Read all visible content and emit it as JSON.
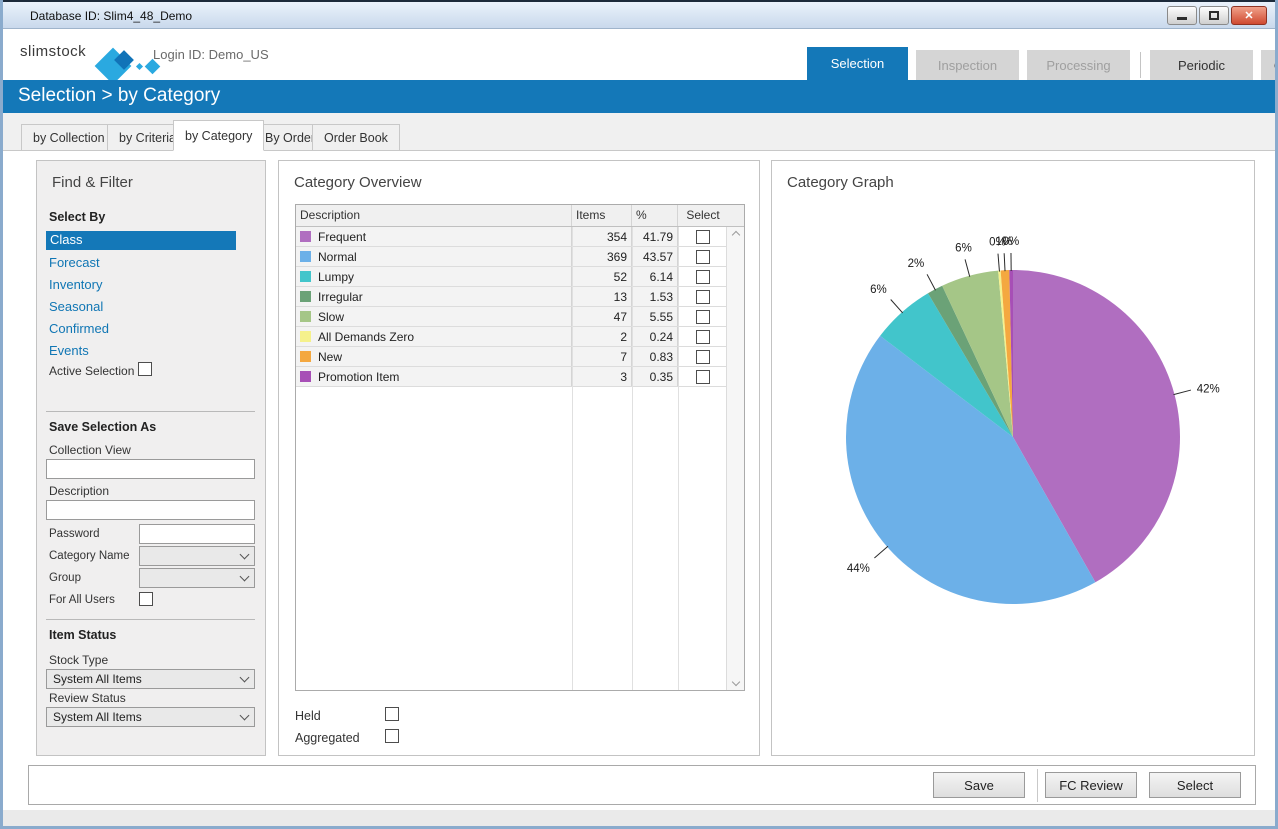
{
  "window": {
    "title": "Database ID: Slim4_48_Demo"
  },
  "header": {
    "logo_text": "slimstock",
    "login": "Login ID: Demo_US",
    "tabs": [
      {
        "label": "Selection",
        "state": "active"
      },
      {
        "label": "Inspection",
        "state": "disabled"
      },
      {
        "label": "Processing",
        "state": "disabled"
      },
      {
        "label": "Periodic",
        "state": "normal"
      },
      {
        "label": "Configuration",
        "state": "normal"
      }
    ]
  },
  "breadcrumb": {
    "text": "Selection > by Category"
  },
  "subtabs": [
    {
      "label": "by Collection"
    },
    {
      "label": "by Criteria"
    },
    {
      "label": "by Category",
      "state": "active"
    },
    {
      "label": "By Order"
    },
    {
      "label": "Order Book"
    }
  ],
  "find_filter": {
    "title": "Find & Filter",
    "select_by_label": "Select By",
    "select_by_items": [
      "Class",
      "Forecast",
      "Inventory",
      "Seasonal",
      "Confirmed",
      "Events"
    ],
    "active_selection_label": "Active Selection",
    "save_as_heading": "Save Selection As",
    "collection_view_label": "Collection View",
    "description_label": "Description",
    "password_label": "Password",
    "category_name_label": "Category Name",
    "group_label": "Group",
    "for_all_users_label": "For All Users",
    "item_status_heading": "Item Status",
    "stock_type_label": "Stock Type",
    "stock_type_value": "System All Items",
    "review_status_label": "Review Status",
    "review_status_value": "System All Items"
  },
  "category_overview": {
    "title": "Category Overview",
    "columns": [
      "Description",
      "Items",
      "%",
      "Select"
    ],
    "rows": [
      {
        "description": "Frequent",
        "items": "354",
        "pct": "41.79"
      },
      {
        "description": "Normal",
        "items": "369",
        "pct": "43.57"
      },
      {
        "description": "Lumpy",
        "items": "52",
        "pct": "6.14"
      },
      {
        "description": "Irregular",
        "items": "13",
        "pct": "1.53"
      },
      {
        "description": "Slow",
        "items": "47",
        "pct": "5.55"
      },
      {
        "description": "All Demands Zero",
        "items": "2",
        "pct": "0.24"
      },
      {
        "description": "New",
        "items": "7",
        "pct": "0.83"
      },
      {
        "description": "Promotion Item",
        "items": "3",
        "pct": "0.35"
      }
    ],
    "held_label": "Held",
    "aggregated_label": "Aggregated"
  },
  "category_graph": {
    "title": "Category Graph"
  },
  "chart_data": {
    "type": "pie",
    "title": "Category Graph",
    "legend_position": "none",
    "start_angle_deg": -90,
    "direction": "clockwise",
    "center": [
      241,
      276
    ],
    "radius": 167,
    "slices": [
      {
        "name": "Frequent",
        "value": 41.79,
        "items": 354,
        "label": "42%",
        "color": "#b06ec0"
      },
      {
        "name": "Normal",
        "value": 43.57,
        "items": 369,
        "label": "44%",
        "color": "#6cb0e8"
      },
      {
        "name": "Lumpy",
        "value": 6.14,
        "items": 52,
        "label": "6%",
        "color": "#42c5cb"
      },
      {
        "name": "Irregular",
        "value": 1.53,
        "items": 13,
        "label": "2%",
        "color": "#6ba277"
      },
      {
        "name": "Slow",
        "value": 5.55,
        "items": 47,
        "label": "6%",
        "color": "#a5c687"
      },
      {
        "name": "All Demands Zero",
        "value": 0.24,
        "items": 2,
        "label": "0%",
        "color": "#f5f18c"
      },
      {
        "name": "New",
        "value": 0.83,
        "items": 7,
        "label": "1%",
        "color": "#f4a840"
      },
      {
        "name": "Promotion Item",
        "value": 0.35,
        "items": 3,
        "label": "0%",
        "color": "#a74fb6"
      }
    ]
  },
  "footer": {
    "buttons": [
      "Save",
      "FC Review",
      "Select"
    ]
  },
  "colors": {
    "accent": "#1478b8",
    "link": "#1076b4"
  }
}
